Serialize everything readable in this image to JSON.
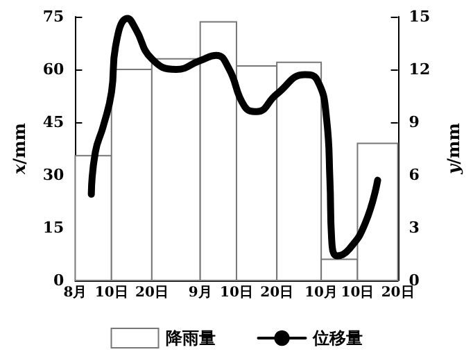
{
  "chart_data": {
    "type": "histogram",
    "series": [
      {
        "name": "降雨量",
        "color": "#ffffff",
        "bins": [
          "--08-01",
          "--08-10",
          "--08-20",
          "--09-01",
          "--09-10",
          "--09-20",
          "--10-01",
          "--10-10",
          "--10-20"
        ],
        "values": [
          35.5,
          60,
          63,
          73.5,
          61,
          62,
          6,
          39
        ]
      },
      {
        "name": "位移量",
        "type": "line",
        "axis": "y2",
        "color": "#000000",
        "x": [
          "--08-05",
          "--08-06",
          "--08-08",
          "--08-10",
          "--08-11",
          "--08-14",
          "--08-16",
          "--08-20",
          "--08-26",
          "--09-01",
          "--09-05",
          "--09-08",
          "--09-12",
          "--09-15",
          "--09-20",
          "--09-27",
          "--09-30",
          "--10-02T08:00",
          "--10-03T04:00",
          "--10-03T14:00",
          "--10-05",
          "--10-08",
          "--10-12",
          "--10-15"
        ],
        "values": [
          4.9,
          7.3,
          8.8,
          10.7,
          13.3,
          14.9,
          14.3,
          12.6,
          12.0,
          12.5,
          12.8,
          12.1,
          9.9,
          9.6,
          10.6,
          11.7,
          11.4,
          9.2,
          5.7,
          2.4,
          1.4,
          1.8,
          3.3,
          5.7
        ]
      }
    ],
    "ylabel": "x/mm",
    "y2label": "y/mm",
    "xlim": [
      "--08-01",
      "--10-20"
    ],
    "xticks": [
      {
        "value": "--08-01",
        "label": "8月"
      },
      {
        "value": "--08-10",
        "label": "10日"
      },
      {
        "value": "--08-20",
        "label": "20日"
      },
      {
        "value": "--09-01",
        "label": "9月"
      },
      {
        "value": "--09-10",
        "label": "10日"
      },
      {
        "value": "--09-20",
        "label": "20日"
      },
      {
        "value": "--10-01",
        "label": "10月"
      },
      {
        "value": "--10-10",
        "label": "10日"
      },
      {
        "value": "--10-20",
        "label": "20日"
      }
    ],
    "ylim": [
      0,
      75
    ],
    "yticks": [
      0,
      15,
      30,
      45,
      60,
      75
    ],
    "y2lim": [
      0,
      15
    ],
    "y2ticks": [
      0,
      3,
      6,
      9,
      12,
      15
    ],
    "legend": "bottom",
    "marker": "none",
    "line_style": "solid",
    "grid": false
  }
}
